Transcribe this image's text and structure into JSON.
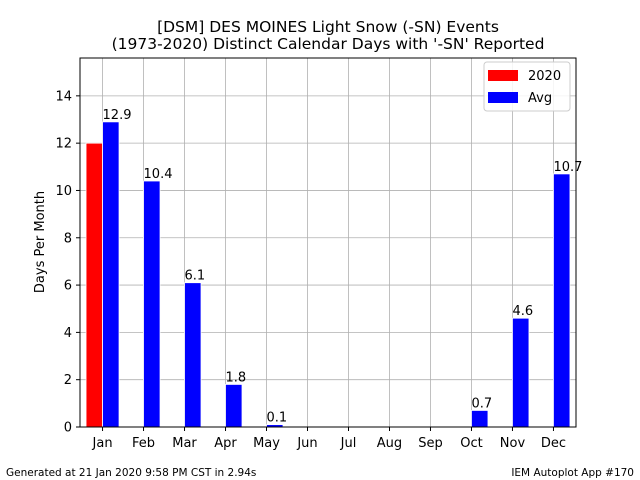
{
  "chart_data": {
    "type": "bar",
    "title_line1": "[DSM] DES MOINES Light Snow (-SN) Events",
    "title_line2": "(1973-2020) Distinct Calendar Days with '-SN' Reported",
    "xlabel": "",
    "ylabel": "Days Per Month",
    "ylim": [
      0,
      15.6
    ],
    "yticks": [
      0,
      2,
      4,
      6,
      8,
      10,
      12,
      14
    ],
    "grid": true,
    "legend_position": "top-right",
    "categories": [
      "Jan",
      "Feb",
      "Mar",
      "Apr",
      "May",
      "Jun",
      "Jul",
      "Aug",
      "Sep",
      "Oct",
      "Nov",
      "Dec"
    ],
    "series": [
      {
        "name": "2020",
        "color": "#ff0000",
        "values": [
          12,
          null,
          null,
          null,
          null,
          null,
          null,
          null,
          null,
          null,
          null,
          null
        ]
      },
      {
        "name": "Avg",
        "color": "#0000ff",
        "values": [
          12.9,
          10.4,
          6.1,
          1.8,
          0.1,
          0,
          0,
          0,
          0,
          0.7,
          4.6,
          10.7
        ],
        "labels": [
          "12.9",
          "10.4",
          "6.1",
          "1.8",
          "0.1",
          null,
          null,
          null,
          null,
          "0.7",
          "4.6",
          "10.7"
        ]
      }
    ]
  },
  "footer": {
    "left": "Generated at 21 Jan 2020 9:58 PM CST in 2.94s",
    "right": "IEM Autoplot App #170"
  }
}
